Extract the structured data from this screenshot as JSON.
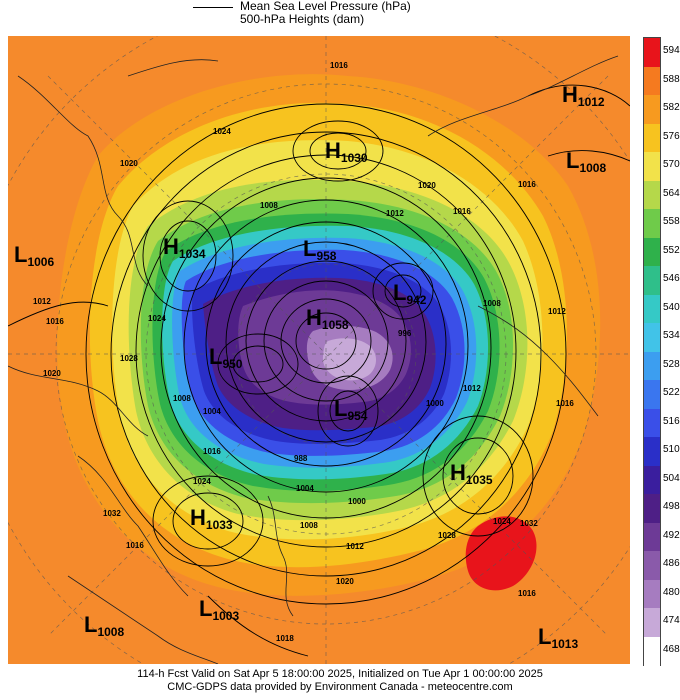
{
  "legend": {
    "mslp_label": "Mean Sea Level Pressure (hPa)",
    "heights_label": "500-hPa Heights (dam)"
  },
  "colorbar": {
    "levels": [
      "594",
      "588",
      "582",
      "576",
      "570",
      "564",
      "558",
      "552",
      "546",
      "540",
      "534",
      "528",
      "522",
      "516",
      "510",
      "504",
      "498",
      "492",
      "486",
      "480",
      "474",
      "468"
    ],
    "colors": [
      "#e8141b",
      "#f57a1f",
      "#f79a1f",
      "#f7c31f",
      "#f2e24a",
      "#b5d84a",
      "#6fcb4a",
      "#2fb14b",
      "#2fbf8a",
      "#35c9c6",
      "#41c3e8",
      "#3c9ef0",
      "#3a76ef",
      "#3a4fe8",
      "#2a2fc8",
      "#3a1e9e",
      "#4e1f86",
      "#6d3a96",
      "#8a5aaa",
      "#a67cc0",
      "#c7a9d8",
      "#ffffff"
    ]
  },
  "systems": [
    {
      "type": "H",
      "value": "1012"
    },
    {
      "type": "L",
      "value": "1008"
    },
    {
      "type": "H",
      "value": "1030"
    },
    {
      "type": "L",
      "value": "1006"
    },
    {
      "type": "H",
      "value": "1034"
    },
    {
      "type": "L",
      "value": "958"
    },
    {
      "type": "L",
      "value": "942"
    },
    {
      "type": "H",
      "value": "1058"
    },
    {
      "type": "L",
      "value": "950"
    },
    {
      "type": "L",
      "value": "954"
    },
    {
      "type": "H",
      "value": "1035"
    },
    {
      "type": "H",
      "value": "1033"
    },
    {
      "type": "L",
      "value": "1003"
    },
    {
      "type": "L",
      "value": "1008"
    },
    {
      "type": "L",
      "value": "1013"
    }
  ],
  "isobar_labels": [
    "1016",
    "1024",
    "1020",
    "1012",
    "1008",
    "1016",
    "1020",
    "1012",
    "1016",
    "1024",
    "1016",
    "1012",
    "1020",
    "1028",
    "1016",
    "1008",
    "1004",
    "1000",
    "1016",
    "1024",
    "1032",
    "1008",
    "1012",
    "996",
    "988",
    "1004",
    "1000",
    "1008",
    "1012",
    "1016",
    "1024",
    "1028",
    "1020",
    "1032",
    "1016",
    "1018"
  ],
  "footer": {
    "line1": "114-h Fcst Valid on Sat Apr  5 18:00:00 2025, Initialized on Tue Apr  1 00:00:00 2025",
    "line2": "CMC-GDPS data provided by Environment Canada - meteocentre.com"
  }
}
